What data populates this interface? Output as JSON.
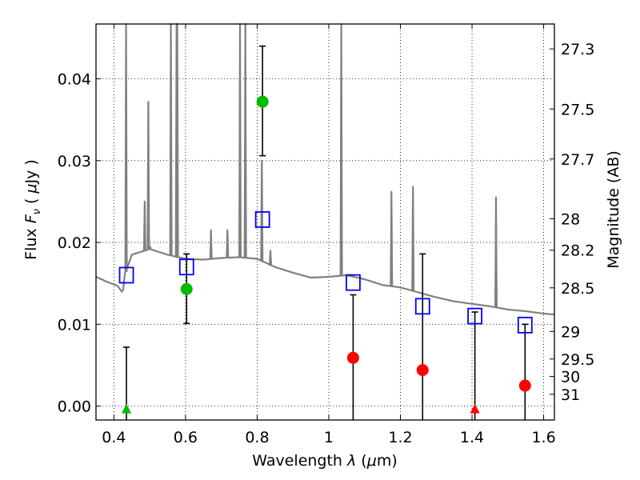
{
  "chart_data": {
    "type": "scatter",
    "xlabel": "Wavelength  λ (μm)",
    "ylabel": "Flux  F_ν  ( μJy )",
    "y2label": "Magnitude (AB)",
    "xlim": [
      0.35,
      1.63
    ],
    "ylim": [
      -0.0017,
      0.0467
    ],
    "grid": true,
    "x_ticks": [
      {
        "value": 0.4,
        "label": "0.4"
      },
      {
        "value": 0.6,
        "label": "0.6"
      },
      {
        "value": 0.8,
        "label": "0.8"
      },
      {
        "value": 1.0,
        "label": "1"
      },
      {
        "value": 1.2,
        "label": "1.2"
      },
      {
        "value": 1.4,
        "label": "1.4"
      },
      {
        "value": 1.6,
        "label": "1.6"
      }
    ],
    "y_ticks": [
      {
        "value": 0.0,
        "label": "0.00"
      },
      {
        "value": 0.01,
        "label": "0.01"
      },
      {
        "value": 0.02,
        "label": "0.02"
      },
      {
        "value": 0.03,
        "label": "0.03"
      },
      {
        "value": 0.04,
        "label": "0.04"
      }
    ],
    "mag_ticks": [
      {
        "label": "27.3",
        "mag": 27.3
      },
      {
        "label": "27.5",
        "mag": 27.5
      },
      {
        "label": "27.7",
        "mag": 27.7
      },
      {
        "label": "28",
        "mag": 28.0
      },
      {
        "label": "28.2",
        "mag": 28.2
      },
      {
        "label": "28.5",
        "mag": 28.5
      },
      {
        "label": "29",
        "mag": 29.0
      },
      {
        "label": "29.5",
        "mag": 29.5
      },
      {
        "label": "30",
        "mag": 30.0
      },
      {
        "label": "31",
        "mag": 31.0
      }
    ],
    "template_spectrum": {
      "color": "#808080",
      "continuum": [
        [
          0.35,
          0.0158
        ],
        [
          0.38,
          0.0152
        ],
        [
          0.41,
          0.0147
        ],
        [
          0.425,
          0.0138
        ],
        [
          0.43,
          0.016
        ],
        [
          0.45,
          0.0185
        ],
        [
          0.5,
          0.0192
        ],
        [
          0.55,
          0.0185
        ],
        [
          0.6,
          0.018
        ],
        [
          0.65,
          0.0179
        ],
        [
          0.7,
          0.0181
        ],
        [
          0.75,
          0.0182
        ],
        [
          0.8,
          0.018
        ],
        [
          0.85,
          0.017
        ],
        [
          0.9,
          0.0163
        ],
        [
          0.95,
          0.0157
        ],
        [
          1.0,
          0.0158
        ],
        [
          1.05,
          0.016
        ],
        [
          1.1,
          0.0155
        ],
        [
          1.15,
          0.0148
        ],
        [
          1.2,
          0.0145
        ],
        [
          1.25,
          0.0139
        ],
        [
          1.3,
          0.0133
        ],
        [
          1.35,
          0.0128
        ],
        [
          1.4,
          0.0125
        ],
        [
          1.45,
          0.0122
        ],
        [
          1.5,
          0.0118
        ],
        [
          1.55,
          0.0116
        ],
        [
          1.6,
          0.0113
        ],
        [
          1.63,
          0.0112
        ]
      ],
      "lines": [
        {
          "x": 0.434,
          "peak": 0.0467
        },
        {
          "x": 0.486,
          "peak": 0.025
        },
        {
          "x": 0.496,
          "peak": 0.0372
        },
        {
          "x": 0.501,
          "peak": 0.0195
        },
        {
          "x": 0.559,
          "peak": 0.0467
        },
        {
          "x": 0.575,
          "peak": 0.0467
        },
        {
          "x": 0.577,
          "peak": 0.0467
        },
        {
          "x": 0.671,
          "peak": 0.0215
        },
        {
          "x": 0.717,
          "peak": 0.0215
        },
        {
          "x": 0.752,
          "peak": 0.0467
        },
        {
          "x": 0.767,
          "peak": 0.0467
        },
        {
          "x": 0.813,
          "peak": 0.03
        },
        {
          "x": 0.837,
          "peak": 0.019
        },
        {
          "x": 1.035,
          "peak": 0.0467
        },
        {
          "x": 1.175,
          "peak": 0.0262
        },
        {
          "x": 1.235,
          "peak": 0.0268
        },
        {
          "x": 1.467,
          "peak": 0.0255
        }
      ]
    },
    "series": [
      {
        "name": "",
        "marker": "square-open",
        "color": "#0000ff",
        "x": [
          0.435,
          0.603,
          0.815,
          1.068,
          1.262,
          1.408,
          1.548
        ],
        "y": [
          0.016,
          0.017,
          0.0228,
          0.0151,
          0.0122,
          0.011,
          0.0099
        ]
      },
      {
        "name": "",
        "marker": "circle",
        "color": "#00bb00",
        "x": [
          0.603,
          0.815
        ],
        "y": [
          0.0143,
          0.0372
        ],
        "err_low": [
          0.0101,
          0.0306
        ],
        "err_high": [
          0.0186,
          0.044
        ]
      },
      {
        "name": "",
        "marker": "circle",
        "color": "#ff0000",
        "x": [
          1.068,
          1.262,
          1.548
        ],
        "y": [
          0.0059,
          0.0044,
          0.0025
        ],
        "err_low": [
          -0.0017,
          -0.0017,
          -0.0017
        ],
        "err_high": [
          0.0136,
          0.0186,
          0.01
        ]
      },
      {
        "name": "",
        "marker": "triangle",
        "color": "#00bb00",
        "x": [
          0.435
        ],
        "y": [
          -0.0003
        ],
        "err_low": [
          -0.0017
        ],
        "err_high": [
          0.0072
        ]
      },
      {
        "name": "",
        "marker": "triangle",
        "color": "#ff0000",
        "x": [
          1.408
        ],
        "y": [
          -0.0003
        ],
        "err_low": [
          -0.0017
        ],
        "err_high": [
          0.0115
        ]
      }
    ]
  }
}
